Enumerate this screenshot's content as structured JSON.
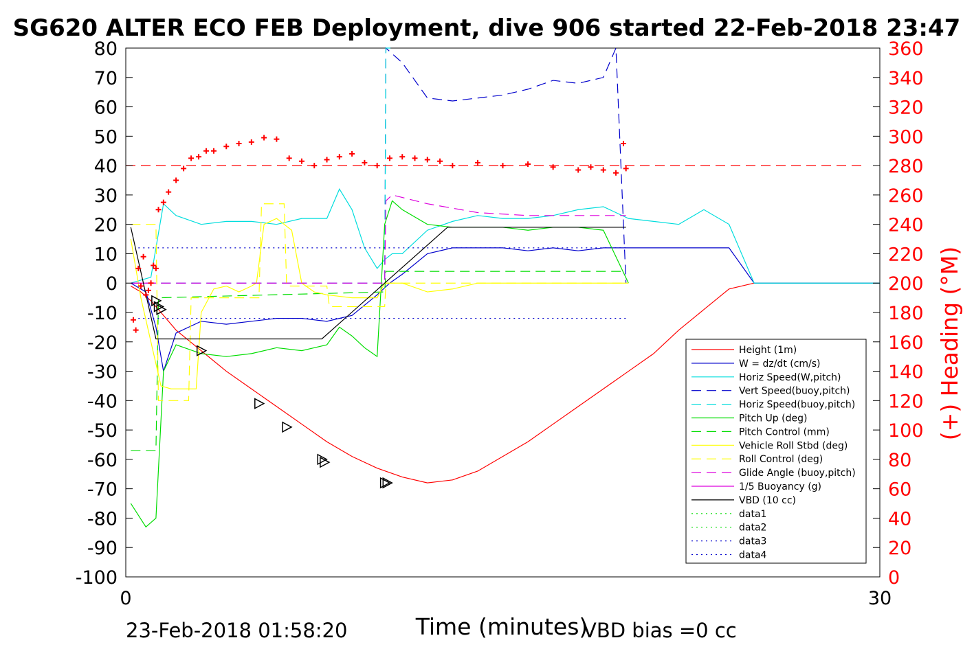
{
  "chart_data": {
    "type": "line",
    "title": "SG620 ALTER ECO FEB Deployment, dive 906 started 22-Feb-2018 23:47",
    "xlabel": "Time (minutes)",
    "ylabel_right": "(+) Heading (°M)",
    "xlim": [
      0,
      30
    ],
    "ylim": [
      -100,
      80
    ],
    "ylim_right": [
      0,
      360
    ],
    "x_ticks": [
      "0",
      "30"
    ],
    "y_ticks": [
      "80",
      "70",
      "60",
      "50",
      "40",
      "30",
      "20",
      "10",
      "0",
      "-10",
      "-20",
      "-30",
      "-40",
      "-50",
      "-60",
      "-70",
      "-80",
      "-90",
      "-100"
    ],
    "y_ticks_right": [
      "360",
      "340",
      "320",
      "300",
      "280",
      "260",
      "240",
      "220",
      "200",
      "180",
      "160",
      "140",
      "120",
      "100",
      "80",
      "60",
      "40",
      "20",
      "0"
    ],
    "footer_left": "23-Feb-2018 01:58:20",
    "footer_right": "VBD bias =0 cc",
    "grid": false,
    "legend_position": "lower-right",
    "series": [
      {
        "name": "Height (1m)",
        "color": "#ff0000",
        "style": "solid",
        "x": [
          0.2,
          0.6,
          1.0,
          1.5,
          2.0,
          3.0,
          4.0,
          5.0,
          6.0,
          7.0,
          8.0,
          9.0,
          10.0,
          11.0,
          12.0,
          13.0,
          14.0,
          15.0,
          16.0,
          17.0,
          18.0,
          19.0,
          20.0,
          21.0,
          22.0,
          23.0,
          24.0,
          25.0,
          26.0,
          27.0,
          28.0,
          29.0,
          30.0
        ],
        "y": [
          -1,
          -3,
          -6,
          -11,
          -16,
          -23,
          -30,
          -36,
          -42,
          -48,
          -54,
          -59,
          -63,
          -66,
          -68,
          -67,
          -64,
          -59,
          -54,
          -48,
          -42,
          -36,
          -30,
          -24,
          -16,
          -9,
          -2,
          0,
          0,
          0,
          0,
          0,
          0
        ]
      },
      {
        "name": "W = dz/dt (cm/s)",
        "color": "#0000cc",
        "style": "solid",
        "x": [
          0.2,
          0.8,
          1.2,
          1.5,
          2.0,
          3.0,
          4.0,
          5.0,
          6.0,
          7.0,
          8.0,
          9.0,
          10.0,
          10.5,
          11.0,
          12.0,
          13.0,
          14.0,
          15.0,
          16.0,
          17.0,
          18.0,
          19.0,
          20.0,
          21.0,
          22.0,
          23.0,
          24.0,
          25.0,
          26.0,
          27.0,
          28.0,
          29.0,
          30.0
        ],
        "y": [
          0,
          -3,
          -15,
          -30,
          -17,
          -13,
          -14,
          -13,
          -12,
          -12,
          -13,
          -11,
          -4,
          0,
          3,
          10,
          12,
          12,
          12,
          11,
          12,
          11,
          12,
          12,
          12,
          12,
          12,
          12,
          0,
          0,
          0,
          0,
          0,
          0
        ]
      },
      {
        "name": "Horiz Speed(W,pitch)",
        "color": "#00dddd",
        "style": "solid",
        "x": [
          0.2,
          1.0,
          1.5,
          2.0,
          3.0,
          4.0,
          5.0,
          6.0,
          7.0,
          8.0,
          8.5,
          9.0,
          9.5,
          10.0,
          10.3,
          10.6,
          11.0,
          12.0,
          13.0,
          14.0,
          15.0,
          16.0,
          17.0,
          18.0,
          19.0,
          20.0,
          21.0,
          22.0,
          23.0,
          24.0,
          25.0,
          26.0,
          27.0,
          28.0,
          29.0,
          30.0
        ],
        "y": [
          0,
          2,
          27,
          23,
          20,
          21,
          21,
          20,
          22,
          22,
          32,
          25,
          12,
          5,
          8,
          10,
          10,
          18,
          21,
          23,
          22,
          22,
          23,
          25,
          26,
          22,
          21,
          20,
          25,
          20,
          0,
          0,
          0,
          0,
          0,
          0
        ]
      },
      {
        "name": "Vert Speed(buoy,pitch)",
        "color": "#0000cc",
        "style": "dashed",
        "x": [
          0.2,
          10.3,
          10.35,
          11.0,
          12.0,
          13.0,
          14.0,
          15.0,
          16.0,
          17.0,
          18.0,
          19.0,
          19.5,
          19.9
        ],
        "y": [
          0,
          0,
          80,
          75,
          63,
          62,
          63,
          64,
          66,
          69,
          68,
          70,
          80,
          0
        ]
      },
      {
        "name": "Horiz Speed(buoy,pitch)",
        "color": "#00dddd",
        "style": "dashed",
        "x": [
          0.2,
          10.3,
          10.35,
          10.6
        ],
        "y": [
          0,
          0,
          80,
          80
        ]
      },
      {
        "name": "Pitch Up (deg)",
        "color": "#00dd00",
        "style": "solid",
        "x": [
          0.2,
          0.8,
          1.2,
          1.5,
          2.0,
          3.0,
          4.0,
          5.0,
          6.0,
          7.0,
          8.0,
          8.5,
          9.0,
          9.5,
          10.0,
          10.3,
          10.6,
          11.0,
          12.0,
          13.0,
          14.0,
          15.0,
          16.0,
          17.0,
          18.0,
          19.0,
          20.0
        ],
        "y": [
          -75,
          -83,
          -80,
          -30,
          -21,
          -24,
          -25,
          -24,
          -22,
          -23,
          -21,
          -15,
          -18,
          -22,
          -25,
          20,
          28,
          25,
          20,
          19,
          19,
          19,
          18,
          19,
          19,
          18,
          0
        ]
      },
      {
        "name": "Pitch Control (mm)",
        "color": "#00dd00",
        "style": "dashed",
        "x": [
          0.2,
          1.2,
          1.3,
          10.3,
          10.35,
          19.9
        ],
        "y": [
          -57,
          -57,
          -5,
          -3,
          4,
          4
        ]
      },
      {
        "name": "Vehicle Roll Stbd (deg)",
        "color": "#ffff00",
        "style": "solid",
        "x": [
          0.2,
          0.6,
          1.0,
          1.4,
          1.8,
          2.3,
          2.8,
          3.0,
          3.5,
          4.0,
          4.5,
          5.0,
          5.2,
          5.5,
          6.0,
          6.3,
          6.6,
          7.0,
          7.5,
          8.0,
          9.0,
          10.0,
          10.3,
          11.0,
          12.0,
          13.0,
          14.0,
          15.0,
          16.0,
          17.0,
          18.0,
          19.0,
          20.0
        ],
        "y": [
          15,
          -5,
          -20,
          -35,
          -36,
          -36,
          -36,
          -10,
          -2,
          -1,
          -3,
          -1,
          0,
          20,
          22,
          20,
          18,
          0,
          -3,
          -4,
          -5,
          -5,
          0,
          0,
          -3,
          -2,
          0,
          0,
          0,
          0,
          0,
          0,
          0
        ]
      },
      {
        "name": "Roll Control (deg)",
        "color": "#ffff00",
        "style": "dashed",
        "x": [
          0.2,
          1.2,
          1.3,
          2.5,
          2.6,
          5.3,
          5.4,
          6.3,
          6.4,
          8.0,
          8.1,
          10.3,
          10.35,
          19.9
        ],
        "y": [
          20,
          20,
          -40,
          -40,
          -5,
          -5,
          27,
          27,
          -1,
          -1,
          -8,
          -8,
          0,
          0
        ]
      },
      {
        "name": "Glide Angle (buoy,pitch)",
        "color": "#dd00dd",
        "style": "dashed",
        "x": [
          0.2,
          10.3,
          10.35,
          10.6,
          12.0,
          14.0,
          16.0,
          18.0,
          19.9
        ],
        "y": [
          0,
          0,
          28,
          30,
          27,
          24,
          23,
          23,
          23
        ]
      },
      {
        "name": "1/5 Buoyancy (g)",
        "color": "#dd00dd",
        "style": "solid",
        "x": [
          0.2,
          0.8,
          1.2
        ],
        "y": [
          0,
          0,
          0
        ]
      },
      {
        "name": "VBD (10 cc)",
        "color": "#000000",
        "style": "solid",
        "x": [
          0.2,
          1.2,
          7.8,
          10.3,
          12.8,
          19.9
        ],
        "y": [
          19,
          -19,
          -19,
          0,
          19,
          19
        ]
      },
      {
        "name": "data1",
        "color": "#00dd00",
        "style": "dotted",
        "x": [],
        "y": []
      },
      {
        "name": "data2",
        "color": "#00dd00",
        "style": "dotted",
        "x": [],
        "y": []
      },
      {
        "name": "data3",
        "color": "#0000cc",
        "style": "dotted",
        "x": [
          0.5,
          19.9
        ],
        "y": [
          -12,
          -12
        ]
      },
      {
        "name": "data4",
        "color": "#0000cc",
        "style": "dotted",
        "x": [
          0.5,
          19.9
        ],
        "y": [
          12,
          12
        ]
      }
    ],
    "heading": {
      "color": "#ff0000",
      "marker": "+",
      "reference_dashed": 280,
      "x": [
        0.3,
        0.4,
        0.5,
        0.6,
        0.7,
        0.8,
        0.9,
        1.0,
        1.1,
        1.2,
        1.3,
        1.5,
        1.7,
        2.0,
        2.3,
        2.6,
        2.9,
        3.2,
        3.5,
        4.0,
        4.5,
        5.0,
        5.5,
        6.0,
        6.5,
        7.0,
        7.5,
        8.0,
        8.5,
        9.0,
        9.5,
        10.0,
        10.5,
        11.0,
        11.5,
        12.0,
        12.5,
        13.0,
        14.0,
        15.0,
        16.0,
        17.0,
        18.0,
        18.5,
        19.0,
        19.5,
        19.8,
        19.9
      ],
      "y": [
        175,
        168,
        210,
        198,
        218,
        192,
        195,
        200,
        212,
        210,
        250,
        255,
        262,
        270,
        278,
        285,
        286,
        290,
        290,
        293,
        295,
        296,
        299,
        298,
        285,
        283,
        280,
        284,
        286,
        288,
        282,
        280,
        285,
        286,
        285,
        284,
        283,
        280,
        282,
        280,
        281,
        279,
        277,
        279,
        277,
        275,
        295,
        278
      ]
    },
    "triangles": {
      "x": [
        1.2,
        1.3,
        1.4,
        3.0,
        5.3,
        6.4,
        7.8,
        7.9,
        10.3,
        10.4
      ],
      "y": [
        -6,
        -8,
        -9,
        -23,
        -41,
        -49,
        -60,
        -61,
        -68,
        -68
      ]
    }
  }
}
